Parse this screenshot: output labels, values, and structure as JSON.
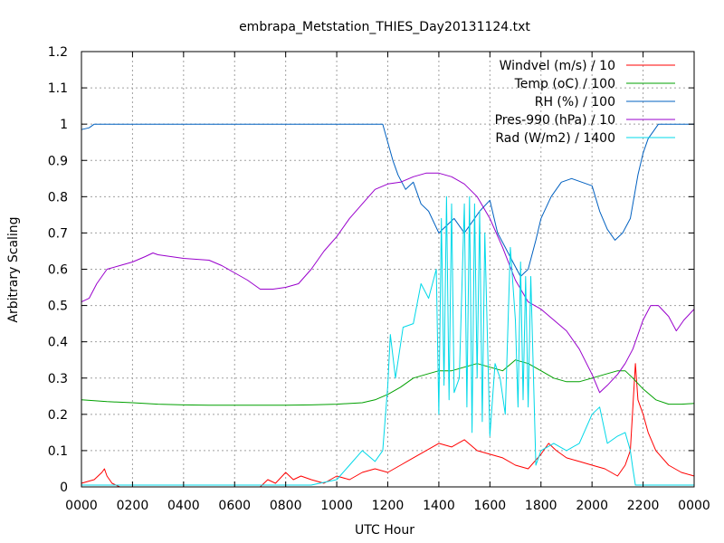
{
  "chart_data": {
    "type": "line",
    "title": "embrapa_Metstation_THIES_Day20131124.txt",
    "xlabel": "UTC Hour",
    "ylabel": "Arbitrary Scaling",
    "xlim": [
      0,
      24
    ],
    "ylim": [
      0,
      1.2
    ],
    "x_ticks": [
      {
        "v": 0,
        "label": "0000"
      },
      {
        "v": 2,
        "label": "0200"
      },
      {
        "v": 4,
        "label": "0400"
      },
      {
        "v": 6,
        "label": "0600"
      },
      {
        "v": 8,
        "label": "0800"
      },
      {
        "v": 10,
        "label": "1000"
      },
      {
        "v": 12,
        "label": "1200"
      },
      {
        "v": 14,
        "label": "1400"
      },
      {
        "v": 16,
        "label": "1600"
      },
      {
        "v": 18,
        "label": "1800"
      },
      {
        "v": 20,
        "label": "2000"
      },
      {
        "v": 22,
        "label": "2200"
      },
      {
        "v": 24,
        "label": "0000"
      }
    ],
    "y_ticks": [
      {
        "v": 0,
        "label": "0"
      },
      {
        "v": 0.1,
        "label": "0.1"
      },
      {
        "v": 0.2,
        "label": "0.2"
      },
      {
        "v": 0.3,
        "label": "0.3"
      },
      {
        "v": 0.4,
        "label": "0.4"
      },
      {
        "v": 0.5,
        "label": "0.5"
      },
      {
        "v": 0.6,
        "label": "0.6"
      },
      {
        "v": 0.7,
        "label": "0.7"
      },
      {
        "v": 0.8,
        "label": "0.8"
      },
      {
        "v": 0.9,
        "label": "0.9"
      },
      {
        "v": 1.0,
        "label": "1"
      },
      {
        "v": 1.1,
        "label": "1.1"
      },
      {
        "v": 1.2,
        "label": "1.2"
      }
    ],
    "grid": true,
    "legend_position": "top-right",
    "series": [
      {
        "name": "Windvel (m/s) / 10",
        "color": "#ff0000",
        "x": [
          0,
          0.5,
          0.8,
          0.9,
          1.0,
          1.2,
          1.5,
          3,
          5,
          7,
          7.3,
          7.6,
          8,
          8.3,
          8.6,
          9,
          9.5,
          10,
          10.5,
          11,
          11.5,
          12,
          12.5,
          13,
          13.5,
          14,
          14.5,
          15,
          15.5,
          16,
          16.5,
          17,
          17.5,
          18,
          18.3,
          18.6,
          19,
          19.5,
          20,
          20.5,
          21,
          21.3,
          21.5,
          21.7,
          21.8,
          22,
          22.2,
          22.5,
          23,
          23.5,
          24
        ],
        "y": [
          0.01,
          0.02,
          0.04,
          0.05,
          0.03,
          0.01,
          0,
          0,
          0,
          0,
          0.02,
          0.01,
          0.04,
          0.02,
          0.03,
          0.02,
          0.01,
          0.03,
          0.02,
          0.04,
          0.05,
          0.04,
          0.06,
          0.08,
          0.1,
          0.12,
          0.11,
          0.13,
          0.1,
          0.09,
          0.08,
          0.06,
          0.05,
          0.09,
          0.12,
          0.1,
          0.08,
          0.07,
          0.06,
          0.05,
          0.03,
          0.06,
          0.1,
          0.34,
          0.24,
          0.2,
          0.15,
          0.1,
          0.06,
          0.04,
          0.03
        ]
      },
      {
        "name": "Temp (oC) / 100",
        "color": "#00a000",
        "x": [
          0,
          1,
          2,
          3,
          4,
          5,
          6,
          7,
          8,
          9,
          10,
          11,
          11.5,
          12,
          12.5,
          13,
          13.5,
          14,
          14.5,
          15,
          15.5,
          16,
          16.5,
          17,
          17.5,
          18,
          18.5,
          19,
          19.5,
          20,
          20.5,
          21,
          21.3,
          21.6,
          22,
          22.5,
          23,
          23.5,
          24
        ],
        "y": [
          0.24,
          0.235,
          0.232,
          0.228,
          0.226,
          0.225,
          0.225,
          0.225,
          0.225,
          0.226,
          0.228,
          0.232,
          0.24,
          0.255,
          0.275,
          0.3,
          0.31,
          0.32,
          0.32,
          0.33,
          0.34,
          0.33,
          0.32,
          0.35,
          0.34,
          0.32,
          0.3,
          0.29,
          0.29,
          0.3,
          0.31,
          0.32,
          0.32,
          0.3,
          0.27,
          0.24,
          0.228,
          0.228,
          0.23
        ]
      },
      {
        "name": "RH (%) / 100",
        "color": "#0060c0",
        "x": [
          0,
          0.3,
          0.5,
          1,
          2,
          4,
          6,
          8,
          10,
          11,
          11.6,
          11.8,
          12,
          12.2,
          12.4,
          12.7,
          13,
          13.3,
          13.6,
          14,
          14.3,
          14.6,
          15,
          15.3,
          15.6,
          16,
          16.3,
          16.6,
          16.9,
          17.2,
          17.5,
          17.8,
          18,
          18.4,
          18.8,
          19.2,
          19.6,
          20,
          20.3,
          20.6,
          20.9,
          21.2,
          21.5,
          21.8,
          22,
          22.2,
          22.4,
          22.6,
          23,
          24
        ],
        "y": [
          0.985,
          0.99,
          1.0,
          1.0,
          1.0,
          1.0,
          1.0,
          1.0,
          1.0,
          1.0,
          1.0,
          1.0,
          0.95,
          0.9,
          0.86,
          0.82,
          0.84,
          0.78,
          0.76,
          0.7,
          0.72,
          0.74,
          0.7,
          0.73,
          0.76,
          0.79,
          0.7,
          0.66,
          0.62,
          0.58,
          0.6,
          0.68,
          0.74,
          0.8,
          0.84,
          0.85,
          0.84,
          0.83,
          0.76,
          0.71,
          0.68,
          0.7,
          0.74,
          0.86,
          0.92,
          0.96,
          0.98,
          1.0,
          1.0,
          1.0
        ]
      },
      {
        "name": "Pres-990 (hPa) / 10",
        "color": "#9900cc",
        "x": [
          0,
          0.3,
          0.6,
          1,
          1.5,
          2,
          2.5,
          2.8,
          3,
          3.5,
          4,
          5,
          5.5,
          6,
          6.5,
          7,
          7.5,
          8,
          8.5,
          9,
          9.5,
          10,
          10.5,
          11,
          11.5,
          12,
          12.5,
          13,
          13.5,
          14,
          14.5,
          15,
          15.5,
          16,
          16.5,
          17,
          17.5,
          18,
          18.5,
          19,
          19.5,
          20,
          20.3,
          20.6,
          21,
          21.3,
          21.6,
          22,
          22.3,
          22.6,
          23,
          23.3,
          23.6,
          24
        ],
        "y": [
          0.51,
          0.52,
          0.56,
          0.6,
          0.61,
          0.62,
          0.635,
          0.645,
          0.64,
          0.635,
          0.63,
          0.625,
          0.61,
          0.59,
          0.57,
          0.545,
          0.545,
          0.55,
          0.56,
          0.6,
          0.65,
          0.69,
          0.74,
          0.78,
          0.82,
          0.835,
          0.84,
          0.855,
          0.865,
          0.865,
          0.855,
          0.835,
          0.8,
          0.74,
          0.66,
          0.57,
          0.51,
          0.49,
          0.46,
          0.43,
          0.38,
          0.31,
          0.26,
          0.28,
          0.31,
          0.34,
          0.38,
          0.46,
          0.5,
          0.5,
          0.47,
          0.43,
          0.46,
          0.49
        ]
      },
      {
        "name": "Rad (W/m2) / 1400",
        "color": "#00d8e8",
        "x": [
          0,
          5,
          9,
          10,
          10.5,
          11,
          11.5,
          11.8,
          12,
          12.1,
          12.3,
          12.6,
          13,
          13.3,
          13.6,
          13.9,
          14,
          14.1,
          14.2,
          14.3,
          14.4,
          14.5,
          14.6,
          14.8,
          15,
          15.1,
          15.2,
          15.3,
          15.4,
          15.5,
          15.6,
          15.7,
          15.8,
          16,
          16.2,
          16.4,
          16.6,
          16.8,
          17,
          17.1,
          17.2,
          17.3,
          17.4,
          17.5,
          17.6,
          17.8,
          18,
          18.5,
          19,
          19.5,
          20,
          20.3,
          20.6,
          21,
          21.3,
          21.5,
          21.6,
          21.7,
          22,
          23,
          24
        ],
        "y": [
          0.005,
          0.005,
          0.005,
          0.02,
          0.06,
          0.1,
          0.07,
          0.1,
          0.28,
          0.42,
          0.3,
          0.44,
          0.45,
          0.56,
          0.52,
          0.6,
          0.2,
          0.74,
          0.28,
          0.8,
          0.24,
          0.78,
          0.26,
          0.3,
          0.78,
          0.22,
          0.8,
          0.15,
          0.78,
          0.3,
          0.76,
          0.18,
          0.7,
          0.14,
          0.34,
          0.3,
          0.2,
          0.66,
          0.46,
          0.22,
          0.62,
          0.24,
          0.58,
          0.22,
          0.58,
          0.06,
          0.1,
          0.12,
          0.1,
          0.12,
          0.2,
          0.22,
          0.12,
          0.14,
          0.15,
          0.1,
          0.05,
          0.005,
          0.005,
          0.005,
          0.005
        ]
      }
    ]
  }
}
